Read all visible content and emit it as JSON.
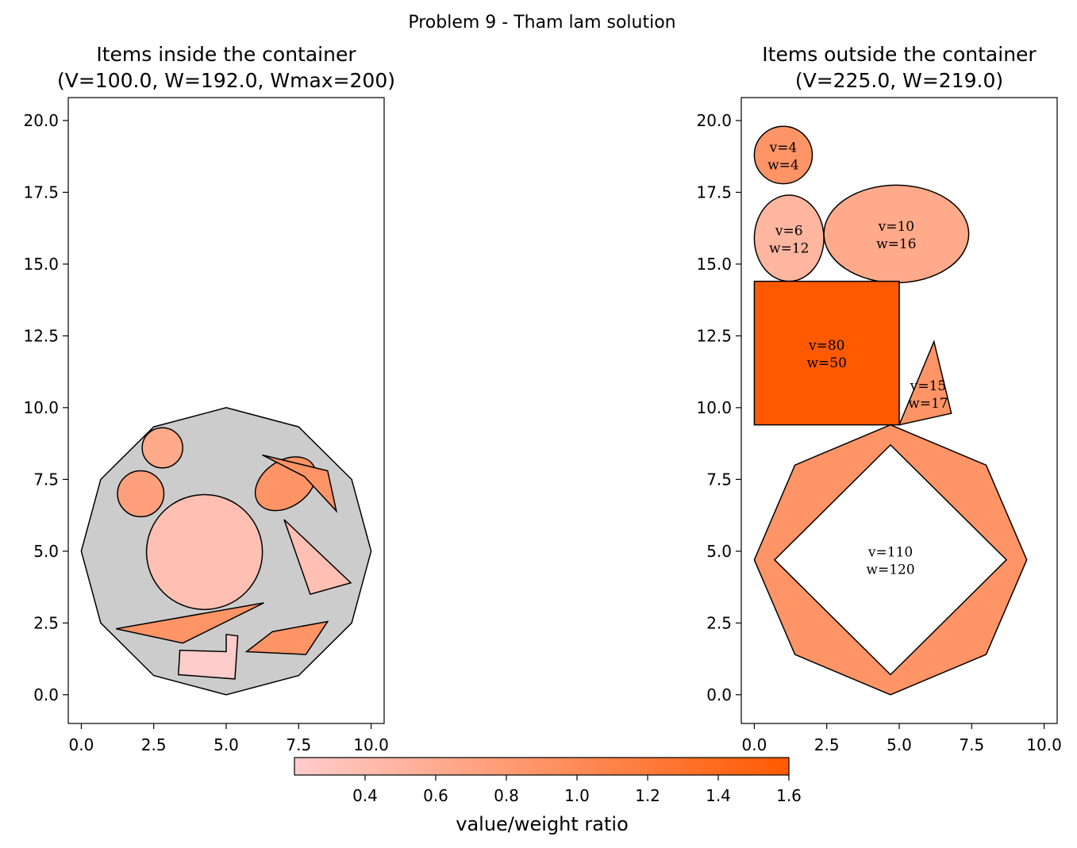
{
  "figure_title": "Problem 9 - Tham lam solution",
  "colorbar": {
    "label": "value/weight ratio",
    "min": 0.2,
    "max": 1.6,
    "ticks": [
      0.4,
      0.6,
      0.8,
      1.0,
      1.2,
      1.4,
      1.6
    ],
    "tick_labels": [
      "0.4",
      "0.6",
      "0.8",
      "1.0",
      "1.2",
      "1.4",
      "1.6"
    ],
    "color_low": "#ffcccc",
    "color_high": "#ff5a00"
  },
  "chart_data": [
    {
      "type": "other",
      "title_line1": "Items inside the container",
      "title_line2": "(V=100.0, W=192.0, Wmax=200)",
      "xlim": [
        -0.45,
        10.45
      ],
      "ylim": [
        -1.0,
        20.8
      ],
      "xticks": [
        0,
        2.5,
        5,
        7.5,
        10
      ],
      "xtick_labels": [
        "0.0",
        "2.5",
        "5.0",
        "7.5",
        "10.0"
      ],
      "yticks": [
        0,
        2.5,
        5,
        7.5,
        10,
        12.5,
        15,
        17.5,
        20
      ],
      "ytick_labels": [
        "0.0",
        "2.5",
        "5.0",
        "7.5",
        "10.0",
        "12.5",
        "15.0",
        "17.5",
        "20.0"
      ],
      "container": {
        "color": "#cccccc",
        "points": [
          [
            5,
            10
          ],
          [
            7.5,
            9.33
          ],
          [
            9.33,
            7.5
          ],
          [
            10,
            5
          ],
          [
            9.33,
            2.5
          ],
          [
            7.5,
            0.67
          ],
          [
            5,
            0
          ],
          [
            2.5,
            0.67
          ],
          [
            0.67,
            2.5
          ],
          [
            0,
            5
          ],
          [
            0.67,
            7.5
          ],
          [
            2.5,
            9.33
          ]
        ]
      },
      "items": [
        {
          "shape": "circle",
          "cx": 4.25,
          "cy": 4.97,
          "r": 2.0,
          "color": "#ffbfb3"
        },
        {
          "shape": "circle",
          "cx": 2.8,
          "cy": 8.6,
          "r": 0.7,
          "color": "#ffaa8a"
        },
        {
          "shape": "circle",
          "cx": 2.05,
          "cy": 7.0,
          "r": 0.8,
          "color": "#ffa07d"
        },
        {
          "shape": "ellipse",
          "cx": 7.05,
          "cy": 7.35,
          "rx": 1.15,
          "ry": 0.8,
          "angle": -35,
          "color": "#ff9466"
        },
        {
          "shape": "polygon",
          "points": [
            [
              6.25,
              8.35
            ],
            [
              8.5,
              7.8
            ],
            [
              8.8,
              6.4
            ],
            [
              7.7,
              7.6
            ]
          ],
          "color": "#ff9466"
        },
        {
          "shape": "polygon",
          "points": [
            [
              7.0,
              6.1
            ],
            [
              9.3,
              3.9
            ],
            [
              7.9,
              3.5
            ]
          ],
          "color": "#ffbfb3"
        },
        {
          "shape": "polygon",
          "points": [
            [
              1.2,
              2.3
            ],
            [
              6.3,
              3.2
            ],
            [
              3.5,
              1.8
            ]
          ],
          "color": "#ff9466"
        },
        {
          "shape": "polygon",
          "points": [
            [
              5.7,
              1.5
            ],
            [
              6.6,
              2.2
            ],
            [
              8.5,
              2.55
            ],
            [
              7.75,
              1.4
            ]
          ],
          "color": "#ff9466"
        },
        {
          "shape": "polygon",
          "points": [
            [
              3.4,
              1.55
            ],
            [
              5.0,
              1.5
            ],
            [
              5.0,
              2.1
            ],
            [
              5.4,
              2.05
            ],
            [
              5.3,
              0.55
            ],
            [
              3.35,
              0.7
            ]
          ],
          "color": "#ffcccc"
        }
      ]
    },
    {
      "type": "other",
      "title_line1": "Items outside the container",
      "title_line2": "(V=225.0, W=219.0)",
      "xlim": [
        -0.45,
        10.45
      ],
      "ylim": [
        -1.0,
        20.8
      ],
      "xticks": [
        0,
        2.5,
        5,
        7.5,
        10
      ],
      "xtick_labels": [
        "0.0",
        "2.5",
        "5.0",
        "7.5",
        "10.0"
      ],
      "yticks": [
        0,
        2.5,
        5,
        7.5,
        10,
        12.5,
        15,
        17.5,
        20
      ],
      "ytick_labels": [
        "0.0",
        "2.5",
        "5.0",
        "7.5",
        "10.0",
        "12.5",
        "15.0",
        "17.5",
        "20.0"
      ],
      "items": [
        {
          "shape": "circle",
          "cx": 1.0,
          "cy": 18.8,
          "r": 1.0,
          "color": "#ff9466",
          "v": "v=4",
          "w": "w=4",
          "lx": 1.0,
          "ly": 18.8
        },
        {
          "shape": "ellipse",
          "cx": 1.2,
          "cy": 15.9,
          "rx": 1.2,
          "ry": 1.5,
          "angle": 0,
          "color": "#ffb6a0",
          "v": "v=6",
          "w": "w=12",
          "lx": 1.2,
          "ly": 15.9
        },
        {
          "shape": "ellipse",
          "cx": 4.9,
          "cy": 16.05,
          "rx": 2.5,
          "ry": 1.7,
          "angle": 0,
          "color": "#ffaa8a",
          "v": "v=10",
          "w": "w=16",
          "lx": 4.9,
          "ly": 16.05
        },
        {
          "shape": "rect",
          "x": 0,
          "y": 9.4,
          "width": 5.0,
          "height": 5.0,
          "color": "#ff5a00",
          "v": "v=80",
          "w": "w=50",
          "lx": 2.5,
          "ly": 11.9
        },
        {
          "shape": "polygon",
          "points": [
            [
              5.0,
              9.4
            ],
            [
              6.2,
              12.3
            ],
            [
              6.8,
              9.8
            ]
          ],
          "color": "#ff9466",
          "v": "v=15",
          "w": "w=17",
          "lx": 6.0,
          "ly": 10.5
        },
        {
          "shape": "ring",
          "outer": [
            [
              4.7,
              9.4
            ],
            [
              8.0,
              8.0
            ],
            [
              9.4,
              4.7
            ],
            [
              8.0,
              1.4
            ],
            [
              4.7,
              0
            ],
            [
              1.4,
              1.4
            ],
            [
              0,
              4.7
            ],
            [
              1.4,
              8.0
            ]
          ],
          "inner": [
            [
              4.7,
              8.7
            ],
            [
              8.7,
              4.7
            ],
            [
              4.7,
              0.7
            ],
            [
              0.7,
              4.7
            ]
          ],
          "color": "#ff9466",
          "v": "v=110",
          "w": "w=120",
          "lx": 4.7,
          "ly": 4.7
        }
      ]
    }
  ]
}
